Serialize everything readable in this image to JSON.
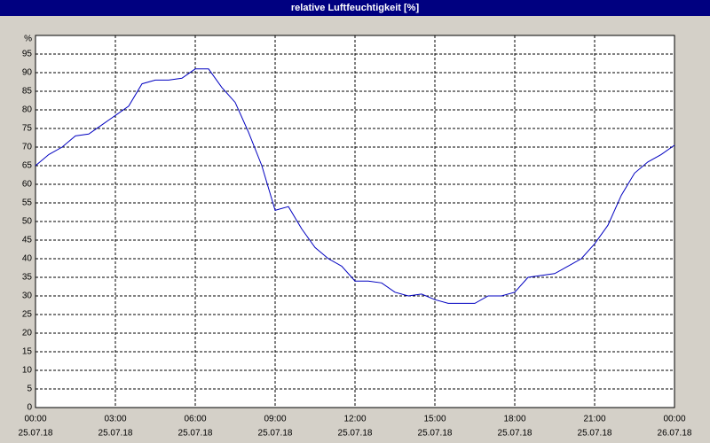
{
  "chart_data": {
    "type": "line",
    "title": "relative Luftfeuchtigkeit [%]",
    "ylabel": "%",
    "x": [
      0,
      0.5,
      1,
      1.5,
      2,
      2.5,
      3,
      3.5,
      4,
      4.5,
      5,
      5.5,
      6,
      6.5,
      7,
      7.5,
      8,
      8.5,
      9,
      9.5,
      10,
      10.5,
      11,
      11.5,
      12,
      12.5,
      13,
      13.5,
      14,
      14.5,
      15,
      15.5,
      16,
      16.5,
      17,
      17.5,
      18,
      18.5,
      19,
      19.5,
      20,
      20.5,
      21,
      21.5,
      22,
      22.5,
      23,
      23.5,
      24
    ],
    "series": [
      {
        "color": "#0000c0",
        "values": [
          65,
          68,
          70,
          73,
          73.5,
          76,
          78.5,
          81,
          87,
          88,
          88,
          88.5,
          91,
          91,
          86,
          82,
          74,
          65,
          53,
          54,
          48,
          43,
          40,
          38,
          34,
          34,
          33.5,
          31,
          30,
          30.5,
          29,
          28,
          28,
          28,
          30,
          30,
          31,
          35,
          35.5,
          36,
          38,
          40,
          44,
          49,
          57,
          63,
          66,
          68,
          70.5
        ]
      }
    ],
    "xlim": [
      0,
      24
    ],
    "xticks": [
      {
        "value": 0,
        "label": "00:00"
      },
      {
        "value": 3,
        "label": "03:00"
      },
      {
        "value": 6,
        "label": "06:00"
      },
      {
        "value": 9,
        "label": "09:00"
      },
      {
        "value": 12,
        "label": "12:00"
      },
      {
        "value": 15,
        "label": "15:00"
      },
      {
        "value": 18,
        "label": "18:00"
      },
      {
        "value": 21,
        "label": "21:00"
      },
      {
        "value": 24,
        "label": "00:00"
      }
    ],
    "xtick_dates": [
      "25.07.18",
      "25.07.18",
      "25.07.18",
      "25.07.18",
      "25.07.18",
      "25.07.18",
      "25.07.18",
      "25.07.18",
      "26.07.18"
    ],
    "ylim": [
      0,
      100
    ],
    "yticks": [
      0,
      5,
      10,
      15,
      20,
      25,
      30,
      35,
      40,
      45,
      50,
      55,
      60,
      65,
      70,
      75,
      80,
      85,
      90,
      95
    ],
    "grid": true
  }
}
